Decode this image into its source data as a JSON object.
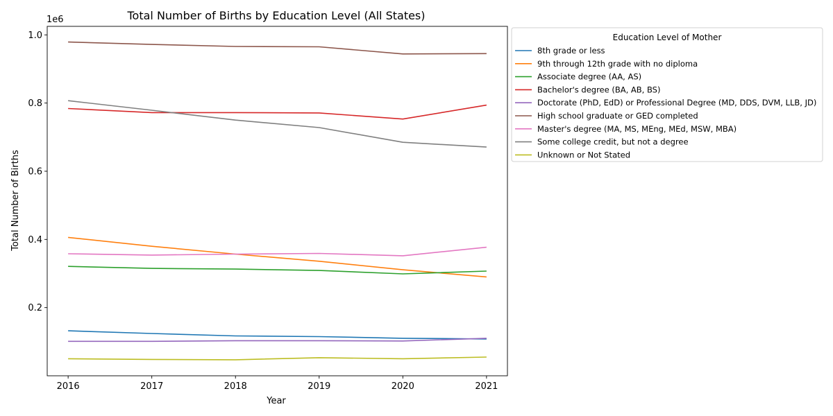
{
  "chart_data": {
    "type": "line",
    "title": "Total Number of Births by Education Level (All States)",
    "xlabel": "Year",
    "ylabel": "Total Number of Births",
    "y_offset_label": "1e6",
    "x": [
      2016,
      2017,
      2018,
      2019,
      2020,
      2021
    ],
    "x_ticks": [
      "2016",
      "2017",
      "2018",
      "2019",
      "2020",
      "2021"
    ],
    "y_ticks": [
      0.2,
      0.4,
      0.6,
      0.8,
      1.0
    ],
    "y_tick_labels": [
      "0.2",
      "0.4",
      "0.6",
      "0.8",
      "1.0"
    ],
    "xlim": [
      2015.75,
      2021.25
    ],
    "ylim": [
      0.0,
      1.025
    ],
    "grid": false,
    "legend_title": "Education Level of Mother",
    "legend_position": "outside right, top",
    "series": [
      {
        "name": "8th grade or less",
        "color": "#1f77b4",
        "values": [
          0.132,
          0.124,
          0.117,
          0.115,
          0.11,
          0.108
        ]
      },
      {
        "name": "9th through 12th grade with no diploma",
        "color": "#ff7f0e",
        "values": [
          0.406,
          0.38,
          0.357,
          0.336,
          0.311,
          0.29
        ]
      },
      {
        "name": "Associate degree (AA, AS)",
        "color": "#2ca02c",
        "values": [
          0.321,
          0.315,
          0.313,
          0.309,
          0.299,
          0.307
        ]
      },
      {
        "name": "Bachelor's degree (BA, AB, BS)",
        "color": "#d62728",
        "values": [
          0.784,
          0.772,
          0.772,
          0.771,
          0.753,
          0.794
        ]
      },
      {
        "name": "Doctorate (PhD, EdD) or Professional Degree (MD, DDS, DVM, LLB, JD)",
        "color": "#9467bd",
        "values": [
          0.101,
          0.101,
          0.103,
          0.103,
          0.102,
          0.11
        ]
      },
      {
        "name": "High school graduate or GED completed",
        "color": "#8c564b",
        "values": [
          0.979,
          0.972,
          0.966,
          0.965,
          0.944,
          0.945
        ]
      },
      {
        "name": "Master's degree (MA, MS, MEng, MEd, MSW, MBA)",
        "color": "#e377c2",
        "values": [
          0.358,
          0.354,
          0.357,
          0.359,
          0.352,
          0.377
        ]
      },
      {
        "name": "Some college credit, but not a degree",
        "color": "#7f7f7f",
        "values": [
          0.807,
          0.779,
          0.75,
          0.728,
          0.685,
          0.671
        ]
      },
      {
        "name": "Unknown or Not Stated",
        "color": "#bcbd22",
        "values": [
          0.05,
          0.048,
          0.047,
          0.053,
          0.05,
          0.055
        ]
      }
    ]
  }
}
